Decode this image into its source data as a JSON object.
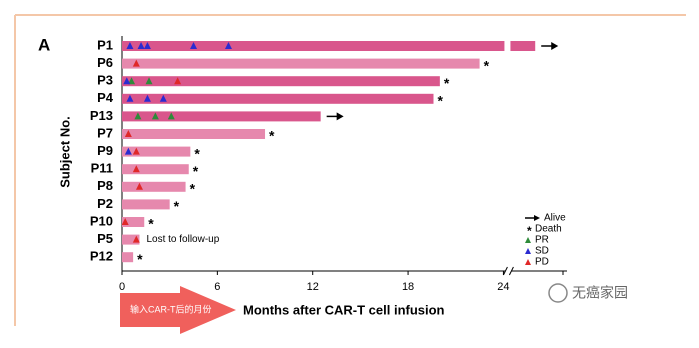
{
  "chart_data": {
    "type": "swimmer",
    "panel_label": "A",
    "y_label": "Subject No.",
    "x_label": "Months after CAR-T cell infusion",
    "x_caption": "输入CAR-T后的月份",
    "watermark": "无癌家园",
    "categories": [
      "P1",
      "P6",
      "P3",
      "P4",
      "P13",
      "P7",
      "P9",
      "P11",
      "P8",
      "P2",
      "P10",
      "P5",
      "P12"
    ],
    "values": [
      26,
      22.5,
      20,
      19.6,
      12.5,
      9,
      4.3,
      4.2,
      4,
      3,
      1.4,
      1.1,
      0.7
    ],
    "bar_colors": [
      "#d9568c",
      "#e688ad",
      "#d9568c",
      "#d9568c",
      "#d9568c",
      "#e688ad",
      "#e688ad",
      "#e688ad",
      "#e688ad",
      "#e688ad",
      "#e688ad",
      "#e688ad",
      "#e688ad"
    ],
    "xlim": [
      0,
      28
    ],
    "xticks": [
      0,
      6,
      12,
      18,
      24
    ],
    "x_break": 24,
    "outcomes": [
      {
        "name": "Alive",
        "marker": "arrow",
        "color": "#000000",
        "categories": [
          "P1",
          "P13"
        ]
      },
      {
        "name": "Death",
        "marker": "asterisk",
        "color": "#000000",
        "categories": [
          "P6",
          "P3",
          "P4",
          "P7",
          "P9",
          "P11",
          "P8",
          "P2",
          "P10",
          "P12"
        ]
      }
    ],
    "series": [
      {
        "name": "PR",
        "color": "#2e8b3a",
        "categories": [
          "P3",
          "P3",
          "P13",
          "P13",
          "P13"
        ],
        "x": [
          0.6,
          1.7,
          1.0,
          2.1,
          3.1
        ]
      },
      {
        "name": "SD",
        "color": "#2b2bd0",
        "categories": [
          "P1",
          "P1",
          "P1",
          "P1",
          "P1",
          "P3",
          "P4",
          "P4",
          "P4",
          "P9"
        ],
        "x": [
          0.5,
          1.2,
          1.6,
          4.5,
          6.7,
          0.3,
          0.5,
          1.6,
          2.6,
          0.4
        ]
      },
      {
        "name": "PD",
        "color": "#e02828",
        "categories": [
          "P6",
          "P3",
          "P7",
          "P9",
          "P11",
          "P8",
          "P10",
          "P5"
        ],
        "x": [
          0.9,
          3.5,
          0.4,
          0.9,
          0.9,
          1.1,
          0.2,
          0.9
        ]
      }
    ],
    "annotations": [
      {
        "category": "P5",
        "text": "Lost to follow-up"
      }
    ]
  }
}
